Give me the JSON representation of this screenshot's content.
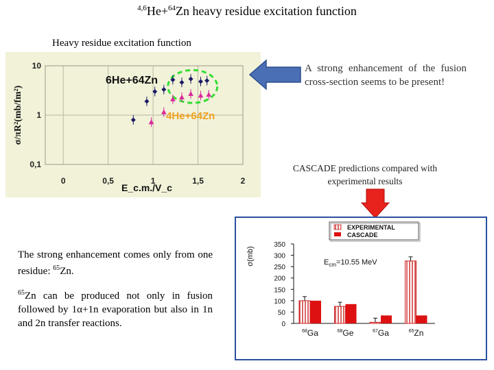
{
  "slide": {
    "title_sup": "4,6",
    "title_mid": "He+",
    "title_sup2": "64",
    "title_rest": "Zn heavy residue excitation function",
    "subtitle": "Heavy residue excitation function",
    "enhancement_note": "A strong enhancement of the fusion cross-section seems to be present!",
    "cascade_caption": "CASCADE predictions compared with experimental results",
    "residue_note_a": "The strong enhancement comes only from one residue: ",
    "residue_note_a_sup": "65",
    "residue_note_a_end": "Zn.",
    "residue_note_b_sup": "65",
    "residue_note_b": "Zn can be produced not only in fusion followed by 1α+1n evaporation but also in  1n and 2n transfer reactions."
  },
  "colors": {
    "plot_bg": "#f2f2d9",
    "he6_marker": "#1a1a66",
    "he4_marker": "#d9279a",
    "highlight_ring": "#33dd33",
    "arrow_blue": "#4a6fb5",
    "arrow_red": "#e8221c",
    "experimental_hatch": "#cc2222",
    "cascade_fill": "#dd1111"
  },
  "chart_data": [
    {
      "type": "scatter",
      "title": "",
      "xlabel": "E_c.m./V_c",
      "ylabel": "σ/πR²(mb/fm²)",
      "xlim": [
        -0.2,
        2.0
      ],
      "ylim": [
        0.1,
        10
      ],
      "y_scale": "log",
      "x_ticks": [
        "0",
        "0,5",
        "1",
        "1,5",
        "2"
      ],
      "y_ticks": [
        "0,1",
        "1",
        "10"
      ],
      "grid": true,
      "series": [
        {
          "name": "6He+64Zn",
          "label_main": "6He+64Zn",
          "points": [
            [
              0.78,
              0.8
            ],
            [
              0.93,
              1.9
            ],
            [
              1.02,
              3.0
            ],
            [
              1.12,
              3.3
            ],
            [
              1.22,
              5.2
            ],
            [
              1.32,
              4.6
            ],
            [
              1.42,
              5.4
            ],
            [
              1.53,
              4.8
            ],
            [
              1.6,
              5.0
            ]
          ]
        },
        {
          "name": "4He+64Zn",
          "label_main": "4He+64Zn",
          "points": [
            [
              0.98,
              0.72
            ],
            [
              1.12,
              1.15
            ],
            [
              1.22,
              2.1
            ],
            [
              1.32,
              2.3
            ],
            [
              1.42,
              2.7
            ],
            [
              1.53,
              2.5
            ],
            [
              1.62,
              2.6
            ]
          ]
        }
      ]
    },
    {
      "type": "bar",
      "title": "",
      "ylabel": "σ(mb)",
      "annotation": "E_cm=10.55 MeV",
      "annotation_main": "E",
      "annotation_sub": "cm",
      "annotation_rest": "=10.55 MeV",
      "legend": [
        "EXPERIMENTAL",
        "CASCADE"
      ],
      "legend_position": "top-right",
      "ylim": [
        0,
        350
      ],
      "y_ticks": [
        "0",
        "50",
        "100",
        "150",
        "200",
        "250",
        "300",
        "350"
      ],
      "categories": [
        {
          "sup": "68",
          "name": "Ga"
        },
        {
          "sup": "68",
          "name": "Ge"
        },
        {
          "sup": "67",
          "name": "Ga"
        },
        {
          "sup": "65",
          "name": "Zn"
        }
      ],
      "series": [
        {
          "name": "EXPERIMENTAL",
          "values": [
            100,
            75,
            5,
            275
          ]
        },
        {
          "name": "CASCADE",
          "values": [
            100,
            85,
            35,
            35
          ]
        }
      ]
    }
  ]
}
